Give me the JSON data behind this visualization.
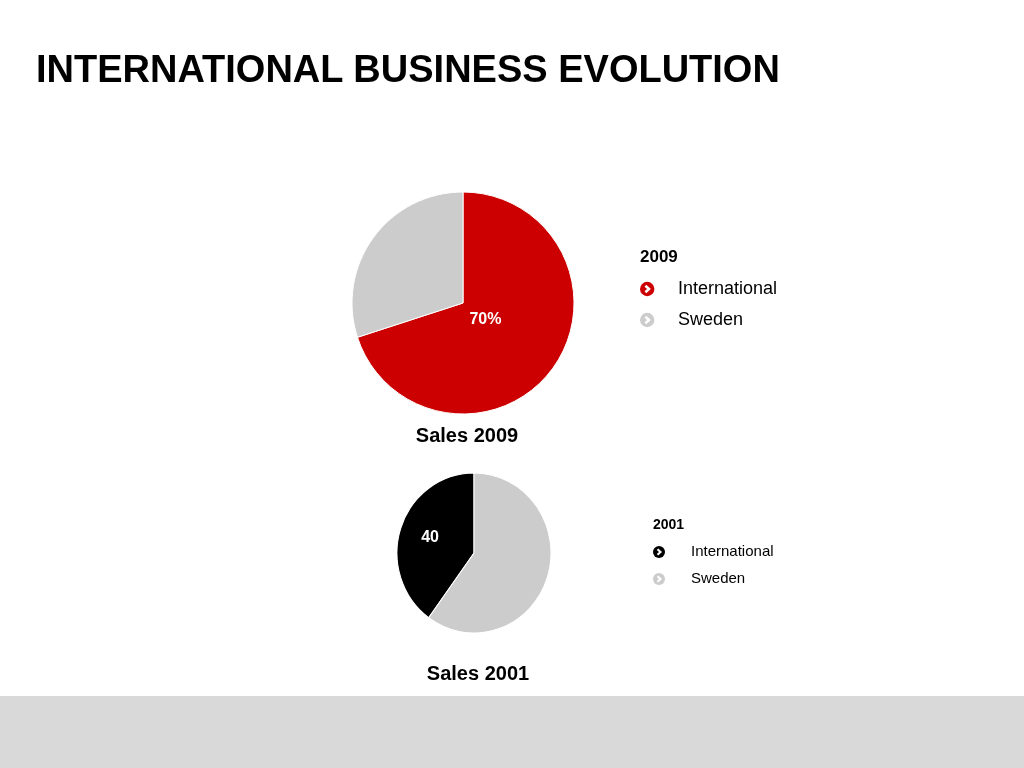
{
  "chart_data": [
    {
      "type": "pie",
      "title": "INTERNATIONAL BUSINESS EVOLUTION",
      "xlabel": "Sales 2009",
      "legend_title": "2009",
      "legend": "right",
      "categories": [
        "International",
        "Sweden"
      ],
      "values": [
        70,
        30
      ],
      "colors": [
        "#cc0000",
        "#cccccc"
      ],
      "value_labels": [
        "70%",
        null
      ]
    },
    {
      "type": "pie",
      "xlabel": "Sales 2001",
      "legend_title": "2001",
      "legend": "right",
      "categories": [
        "International",
        "Sweden"
      ],
      "values": [
        40,
        60
      ],
      "colors": [
        "#000000",
        "#cccccc"
      ],
      "value_labels": [
        "40",
        null
      ]
    }
  ]
}
